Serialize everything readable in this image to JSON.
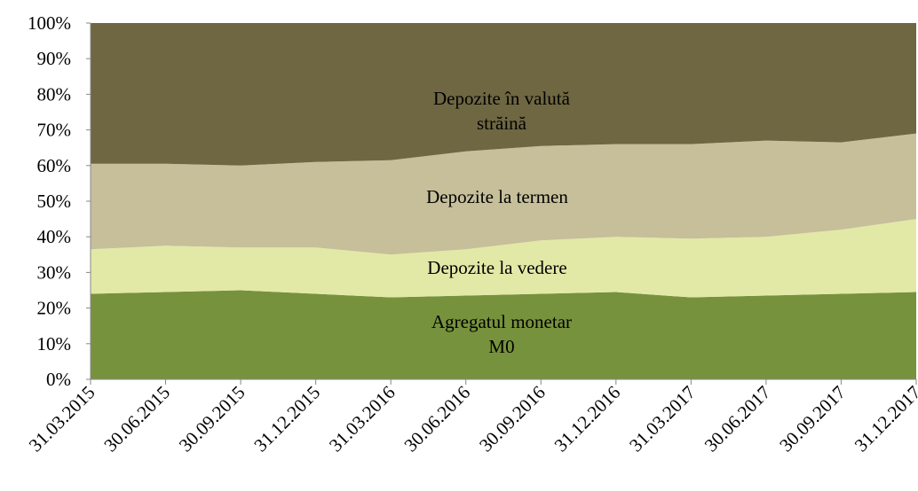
{
  "chart_data": {
    "type": "area",
    "stacked": true,
    "categories": [
      "31.03.2015",
      "30.06.2015",
      "30.09.2015",
      "31.12.2015",
      "31.03.2016",
      "30.06.2016",
      "30.09.2016",
      "31.12.2016",
      "31.03.2017",
      "30.06.2017",
      "30.09.2017",
      "31.12.2017"
    ],
    "series": [
      {
        "name": "Agregatul monetar M0",
        "color": "#77923c",
        "values": [
          24,
          24.5,
          25,
          24,
          23,
          23.5,
          24,
          24.5,
          23,
          23.5,
          24,
          24.5
        ]
      },
      {
        "name": "Depozite la vedere",
        "color": "#e2e9a6",
        "values": [
          12.5,
          13,
          12,
          13,
          12,
          13,
          15,
          15.5,
          16.5,
          16.5,
          18,
          20.5
        ]
      },
      {
        "name": "Depozite la termen",
        "color": "#c6bf9a",
        "values": [
          24,
          23,
          23,
          24,
          26.5,
          27.5,
          26.5,
          26,
          26.5,
          27,
          24.5,
          24
        ]
      },
      {
        "name": "Depozite în valută străină",
        "color": "#6e6742",
        "values": [
          39.5,
          39.5,
          40,
          39,
          38.5,
          36,
          34.5,
          34,
          34,
          33,
          33.5,
          31
        ]
      }
    ],
    "ylim": [
      0,
      100
    ],
    "yticks": [
      {
        "value": 0,
        "label": "0%"
      },
      {
        "value": 10,
        "label": "10%"
      },
      {
        "value": 20,
        "label": "20%"
      },
      {
        "value": 30,
        "label": "30%"
      },
      {
        "value": 40,
        "label": "40%"
      },
      {
        "value": 50,
        "label": "50%"
      },
      {
        "value": 60,
        "label": "60%"
      },
      {
        "value": 70,
        "label": "70%"
      },
      {
        "value": 80,
        "label": "80%"
      },
      {
        "value": 90,
        "label": "90%"
      },
      {
        "value": 100,
        "label": "100%"
      }
    ],
    "grid": false
  }
}
